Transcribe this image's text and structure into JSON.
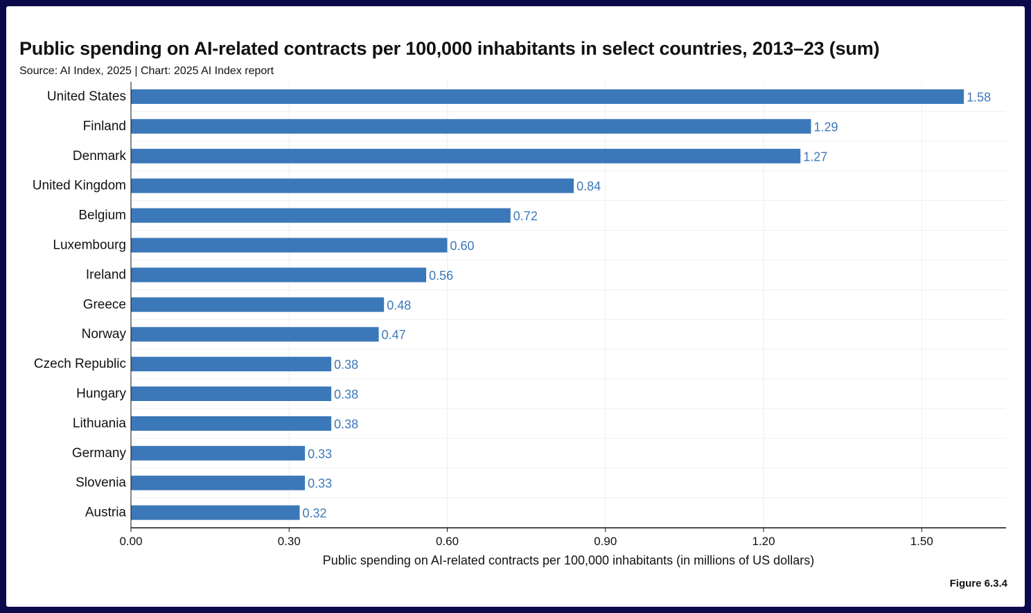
{
  "chart_data": {
    "type": "bar",
    "orientation": "horizontal",
    "title": "Public spending on AI-related contracts per 100,000 inhabitants in select countries, 2013–23 (sum)",
    "subtitle": "Source: AI Index, 2025 | Chart: 2025 AI Index report",
    "xlabel": "Public spending on AI-related contracts per 100,000 inhabitants (in millions of US dollars)",
    "ylabel": "",
    "categories": [
      "United States",
      "Finland",
      "Denmark",
      "United Kingdom",
      "Belgium",
      "Luxembourg",
      "Ireland",
      "Greece",
      "Norway",
      "Czech Republic",
      "Hungary",
      "Lithuania",
      "Germany",
      "Slovenia",
      "Austria"
    ],
    "values": [
      1.58,
      1.29,
      1.27,
      0.84,
      0.72,
      0.6,
      0.56,
      0.48,
      0.47,
      0.38,
      0.38,
      0.38,
      0.33,
      0.33,
      0.32
    ],
    "value_labels": [
      "1.58",
      "1.29",
      "1.27",
      "0.84",
      "0.72",
      "0.60",
      "0.56",
      "0.48",
      "0.47",
      "0.38",
      "0.38",
      "0.38",
      "0.33",
      "0.33",
      "0.32"
    ],
    "xlim": [
      0,
      1.66
    ],
    "xticks": [
      0,
      0.3,
      0.6,
      0.9,
      1.2,
      1.5
    ],
    "xtick_labels": [
      "0.00",
      "0.30",
      "0.60",
      "0.90",
      "1.20",
      "1.50"
    ],
    "grid": true,
    "bar_color": "#3b78b9",
    "label_color": "#3b78b9",
    "gridline_color": "#eeeeee",
    "axis_color": "#111111",
    "frame_color": "#0c0a4a"
  },
  "figure": {
    "label": "Figure 6.3.4"
  }
}
